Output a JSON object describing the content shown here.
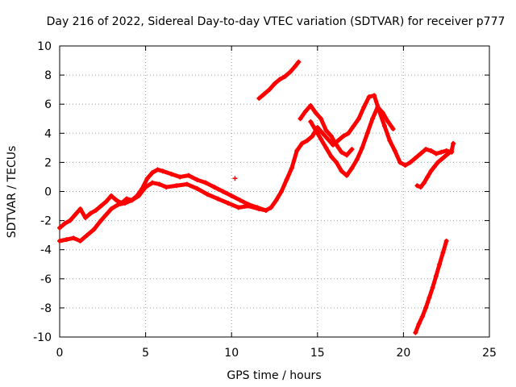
{
  "chart_data": {
    "type": "scatter",
    "title": "Day 216 of 2022, Sidereal Day-to-day VTEC variation (SDTVAR) for receiver p777",
    "xlabel": "GPS time / hours",
    "ylabel": "SDTVAR / TECUs",
    "xlim": [
      0,
      25
    ],
    "ylim": [
      -10,
      10
    ],
    "xticks": [
      0,
      5,
      10,
      15,
      20,
      25
    ],
    "yticks": [
      -10,
      -8,
      -6,
      -4,
      -2,
      0,
      2,
      4,
      6,
      8,
      10
    ],
    "grid": true,
    "marker": "+",
    "color": "#ff0000",
    "series": [
      {
        "x": [
          0.0,
          0.3,
          0.6,
          0.9,
          1.2,
          1.5,
          1.8,
          2.1,
          2.4,
          2.7,
          3.0,
          3.3,
          3.6,
          3.9,
          4.2,
          4.5,
          4.8,
          5.1,
          5.4,
          5.7,
          6.0,
          6.5,
          7.0,
          7.5,
          8.0,
          8.5,
          9.0,
          9.5,
          10.0,
          10.5,
          11.0,
          11.5,
          12.0,
          12.3,
          12.6,
          12.9,
          13.2,
          13.5,
          13.8,
          14.1,
          14.4,
          14.7,
          15.0,
          15.3,
          15.6,
          15.9,
          16.2,
          16.5,
          16.8,
          17.1,
          17.4,
          17.7,
          18.0,
          18.3,
          18.6,
          18.9,
          19.2,
          19.5,
          19.8,
          20.1,
          20.4,
          20.7,
          21.0,
          21.3,
          21.6,
          21.9,
          22.2,
          22.5,
          22.8
        ],
        "y": [
          -2.5,
          -2.2,
          -2.0,
          -1.6,
          -1.2,
          -1.8,
          -1.5,
          -1.3,
          -1.0,
          -0.7,
          -0.3,
          -0.6,
          -0.8,
          -0.5,
          -0.6,
          -0.3,
          0.2,
          0.9,
          1.3,
          1.5,
          1.4,
          1.2,
          1.0,
          1.1,
          0.8,
          0.6,
          0.3,
          0.0,
          -0.3,
          -0.6,
          -0.9,
          -1.1,
          -1.3,
          -1.1,
          -0.6,
          0.0,
          0.8,
          1.6,
          2.8,
          3.3,
          3.5,
          3.8,
          4.4,
          4.0,
          3.6,
          3.2,
          3.5,
          3.8,
          4.0,
          4.5,
          5.0,
          5.8,
          6.5,
          6.6,
          5.5,
          4.5,
          3.5,
          2.8,
          2.0,
          1.8,
          2.0,
          2.3,
          2.6,
          2.9,
          2.8,
          2.6,
          2.7,
          2.8,
          2.7
        ]
      },
      {
        "x": [
          0.0,
          0.4,
          0.8,
          1.2,
          1.6,
          2.0,
          2.4,
          2.7,
          3.0,
          3.4,
          3.8,
          4.2,
          4.6,
          5.0,
          5.4,
          5.8,
          6.2,
          6.8,
          7.4,
          8.0,
          8.6,
          9.2,
          9.8,
          10.4,
          11.0,
          11.6,
          12.0
        ],
        "y": [
          -3.4,
          -3.3,
          -3.2,
          -3.4,
          -3.0,
          -2.6,
          -2.0,
          -1.6,
          -1.2,
          -0.9,
          -0.8,
          -0.6,
          -0.3,
          0.3,
          0.6,
          0.5,
          0.3,
          0.4,
          0.5,
          0.2,
          -0.2,
          -0.5,
          -0.8,
          -1.1,
          -1.0,
          -1.2,
          -1.3
        ]
      },
      {
        "x": [
          14.6,
          14.9,
          15.2,
          15.5,
          15.8,
          16.1,
          16.4,
          16.7,
          17.0,
          17.3,
          17.6,
          17.9,
          18.2,
          18.5,
          18.8,
          19.1,
          19.4
        ],
        "y": [
          4.8,
          4.2,
          3.6,
          3.0,
          2.4,
          2.0,
          1.4,
          1.1,
          1.6,
          2.2,
          3.0,
          4.0,
          5.0,
          5.8,
          5.4,
          4.8,
          4.3
        ]
      },
      {
        "x": [
          14.0,
          14.3,
          14.6,
          14.9,
          15.2,
          15.5,
          15.8,
          16.1,
          16.4,
          16.7,
          17.0
        ],
        "y": [
          5.0,
          5.5,
          5.9,
          5.4,
          5.0,
          4.2,
          3.8,
          3.2,
          2.7,
          2.5,
          2.9
        ]
      },
      {
        "x": [
          11.6,
          11.9,
          12.2,
          12.5,
          12.8,
          13.1,
          13.4,
          13.7,
          13.9
        ],
        "y": [
          6.4,
          6.7,
          7.0,
          7.4,
          7.7,
          7.9,
          8.2,
          8.6,
          8.9
        ]
      },
      {
        "x": [
          20.7,
          20.9,
          21.1,
          21.3,
          21.5,
          21.7,
          21.9,
          22.1,
          22.3,
          22.5
        ],
        "y": [
          -9.7,
          -9.1,
          -8.6,
          -8.0,
          -7.3,
          -6.6,
          -5.8,
          -5.0,
          -4.2,
          -3.4
        ]
      },
      {
        "x": [
          20.8,
          21.0,
          21.2,
          21.4,
          21.6,
          21.8,
          22.0,
          22.2,
          22.4,
          22.6,
          22.8,
          22.9
        ],
        "y": [
          0.4,
          0.3,
          0.6,
          1.0,
          1.4,
          1.7,
          2.0,
          2.2,
          2.4,
          2.6,
          2.8,
          3.3
        ]
      },
      {
        "x": [
          10.2
        ],
        "y": [
          0.9
        ]
      }
    ]
  }
}
